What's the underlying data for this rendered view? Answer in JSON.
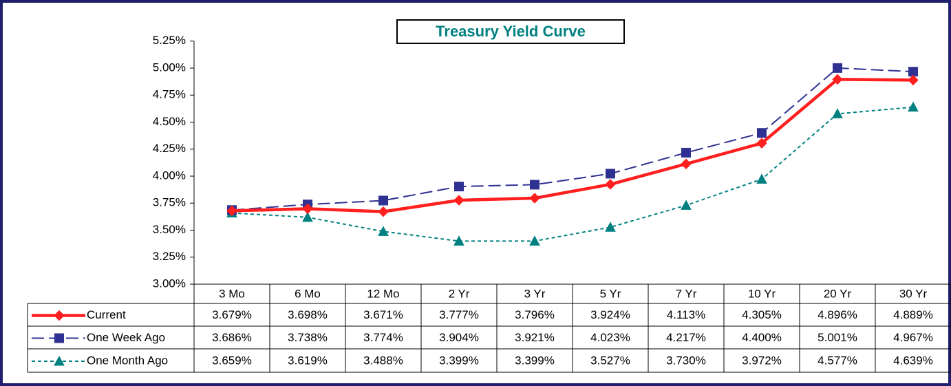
{
  "chart_data": {
    "type": "line",
    "title": "Treasury Yield Curve",
    "categories": [
      "3 Mo",
      "6 Mo",
      "12 Mo",
      "2 Yr",
      "3 Yr",
      "5 Yr",
      "7 Yr",
      "10 Yr",
      "20 Yr",
      "30 Yr"
    ],
    "series": [
      {
        "name": "Current",
        "color": "#ff1f1f",
        "line_style": "solid",
        "marker": "diamond",
        "values": [
          3.679,
          3.698,
          3.671,
          3.777,
          3.796,
          3.924,
          4.113,
          4.305,
          4.896,
          4.889
        ],
        "value_labels": [
          "3.679%",
          "3.698%",
          "3.671%",
          "3.777%",
          "3.796%",
          "3.924%",
          "4.113%",
          "4.305%",
          "4.896%",
          "4.889%"
        ]
      },
      {
        "name": "One Week Ago",
        "color": "#2e3192",
        "line_style": "dashed",
        "marker": "square",
        "values": [
          3.686,
          3.738,
          3.774,
          3.904,
          3.921,
          4.023,
          4.217,
          4.4,
          5.001,
          4.967
        ],
        "value_labels": [
          "3.686%",
          "3.738%",
          "3.774%",
          "3.904%",
          "3.921%",
          "4.023%",
          "4.217%",
          "4.400%",
          "5.001%",
          "4.967%"
        ]
      },
      {
        "name": "One Month Ago",
        "color": "#008080",
        "line_style": "dotted",
        "marker": "triangle",
        "values": [
          3.659,
          3.619,
          3.488,
          3.399,
          3.399,
          3.527,
          3.73,
          3.972,
          4.577,
          4.639
        ],
        "value_labels": [
          "3.659%",
          "3.619%",
          "3.488%",
          "3.399%",
          "3.399%",
          "3.527%",
          "3.730%",
          "3.972%",
          "4.577%",
          "4.639%"
        ]
      }
    ],
    "ylim": [
      3,
      5.25
    ],
    "yticks": [
      {
        "value": 3,
        "label": "3.00%"
      },
      {
        "value": 3.25,
        "label": "3.25%"
      },
      {
        "value": 3.5,
        "label": "3.50%"
      },
      {
        "value": 3.75,
        "label": "3.75%"
      },
      {
        "value": 4,
        "label": "4.00%"
      },
      {
        "value": 4.25,
        "label": "4.25%"
      },
      {
        "value": 4.5,
        "label": "4.50%"
      },
      {
        "value": 4.75,
        "label": "4.75%"
      },
      {
        "value": 5,
        "label": "5.00%"
      },
      {
        "value": 5.25,
        "label": "5.25%"
      }
    ],
    "grid": false,
    "data_table": true
  }
}
